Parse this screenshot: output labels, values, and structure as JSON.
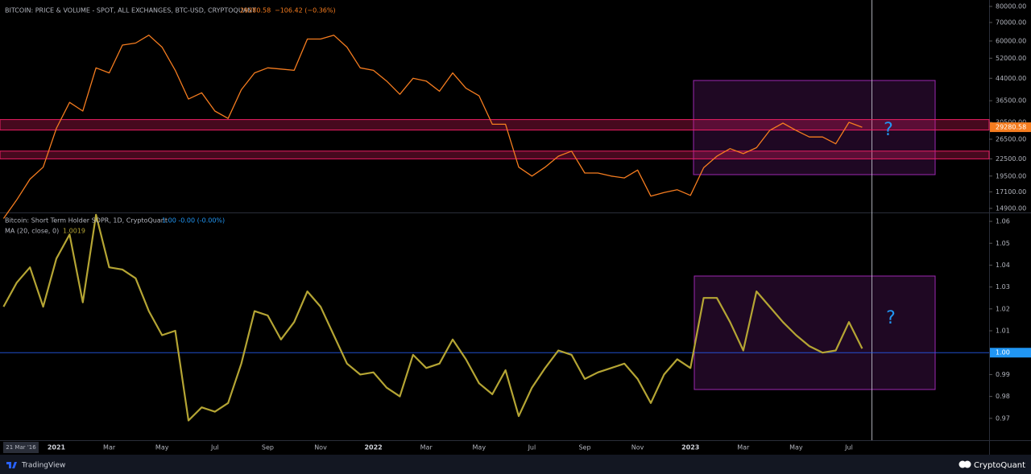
{
  "chart_data": [
    {
      "type": "line",
      "title": "BITCOIN: PRICE & VOLUME - SPOT, ALL EXCHANGES, BTC-USD, CRYPTOQUANT",
      "change": "−106.42 (−0.36%)",
      "color": "#f57c1f",
      "log_scale": true,
      "ylim": [
        14500,
        84400
      ],
      "yticks": [
        {
          "value": 14900,
          "label": "14900.00"
        },
        {
          "value": 17100,
          "label": "17100.00"
        },
        {
          "value": 19500,
          "label": "19500.00"
        },
        {
          "value": 22500,
          "label": "22500.00"
        },
        {
          "value": 26500,
          "label": "26500.00"
        },
        {
          "value": 30500,
          "label": "30500.00"
        },
        {
          "value": 36500,
          "label": "36500.00"
        },
        {
          "value": 44000,
          "label": "44000.00"
        },
        {
          "value": 52000,
          "label": "52000.00"
        },
        {
          "value": 60000,
          "label": "60000.00"
        },
        {
          "value": 70000,
          "label": "70000.00"
        },
        {
          "value": 80000,
          "label": "80000.00"
        }
      ],
      "bands": [
        [
          28600,
          31200
        ],
        [
          22500,
          24000
        ]
      ],
      "annotation": "?",
      "values": [
        13700,
        16000,
        19000,
        21000,
        29000,
        36000,
        33500,
        48000,
        46000,
        58000,
        59000,
        63000,
        57000,
        47000,
        37000,
        39000,
        33500,
        31500,
        40000,
        46000,
        48000,
        47500,
        47000,
        61000,
        61000,
        63000,
        57000,
        48000,
        47000,
        43000,
        38500,
        44000,
        43000,
        39500,
        46000,
        40500,
        38000,
        30000,
        30000,
        21000,
        19500,
        21000,
        23000,
        24000,
        20000,
        20000,
        19500,
        19200,
        20500,
        16500,
        17000,
        17400,
        16600,
        20900,
        23000,
        24500,
        23500,
        24700,
        28500,
        30300,
        28500,
        27000,
        27000,
        25500,
        30500,
        29280.58,
        null,
        null,
        null,
        null,
        null,
        null,
        null,
        null,
        null
      ]
    },
    {
      "type": "line",
      "title": "Bitcoin: Short Term Holder SOPR, 1D, CryptoQuant",
      "title_value": "1.00  -0.00 (-0.00%)",
      "series_name": "MA (20, close, 0)",
      "color": "#b5a534",
      "ylim": [
        0.96,
        1.0637
      ],
      "yticks": [
        0.97,
        0.98,
        0.99,
        1.01,
        1.02,
        1.03,
        1.04,
        1.05,
        1.06
      ],
      "hline": {
        "value": 1,
        "label": "1.00"
      },
      "annotation": "?",
      "categories": [
        null,
        null,
        null,
        null,
        "2021",
        null,
        null,
        null,
        "Mar",
        null,
        null,
        null,
        "May",
        null,
        null,
        null,
        "Jul",
        null,
        null,
        null,
        "Sep",
        null,
        null,
        null,
        "Nov",
        null,
        null,
        null,
        "2022",
        null,
        null,
        null,
        "Mar",
        null,
        null,
        null,
        "May",
        null,
        null,
        null,
        "Jul",
        null,
        null,
        null,
        "Sep",
        null,
        null,
        null,
        "Nov",
        null,
        null,
        null,
        "2023",
        null,
        null,
        null,
        "Mar",
        null,
        null,
        null,
        "May",
        null,
        null,
        null,
        "Jul",
        null,
        null,
        null,
        null,
        null,
        null,
        null,
        null,
        null,
        null
      ],
      "values": [
        1.021,
        1.032,
        1.039,
        1.021,
        1.043,
        1.054,
        1.023,
        1.063,
        1.039,
        1.038,
        1.034,
        1.019,
        1.008,
        1.01,
        0.969,
        0.975,
        0.973,
        0.977,
        0.995,
        1.019,
        1.017,
        1.006,
        1.014,
        1.028,
        1.021,
        1.008,
        0.995,
        0.99,
        0.991,
        0.984,
        0.98,
        0.999,
        0.993,
        0.995,
        1.006,
        0.997,
        0.986,
        0.981,
        0.992,
        0.971,
        0.984,
        0.993,
        1.001,
        0.999,
        0.988,
        0.991,
        0.993,
        0.995,
        0.988,
        0.977,
        0.99,
        0.997,
        0.993,
        1.025,
        1.025,
        1.014,
        1.001,
        1.028,
        1.021,
        1.014,
        1.008,
        1.003,
        1.0,
        1.001,
        1.014,
        1.0019,
        null,
        null,
        null,
        null,
        null,
        null,
        null,
        null,
        null
      ]
    }
  ],
  "footer": {
    "start_date": "21 Mar '16",
    "brand_left": "TradingView",
    "brand_right": "CryptoQuant"
  }
}
